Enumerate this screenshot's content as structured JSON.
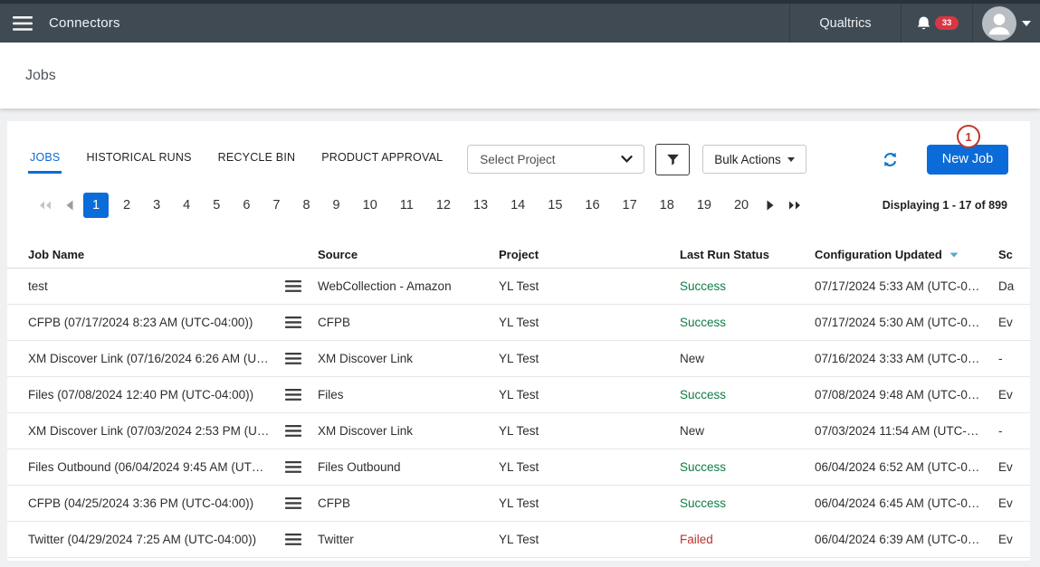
{
  "header": {
    "app_title": "Connectors",
    "brand": "Qualtrics",
    "notification_count": "33"
  },
  "page": {
    "title": "Jobs"
  },
  "tabs": [
    {
      "label": "JOBS",
      "active": true
    },
    {
      "label": "HISTORICAL RUNS",
      "active": false
    },
    {
      "label": "RECYCLE BIN",
      "active": false
    },
    {
      "label": "PRODUCT APPROVAL",
      "active": false
    }
  ],
  "toolbar": {
    "project_select_value": "Select Project",
    "bulk_actions_label": "Bulk Actions",
    "new_job_label": "New Job"
  },
  "annotation": {
    "label": "1"
  },
  "pagination": {
    "pages": [
      "1",
      "2",
      "3",
      "4",
      "5",
      "6",
      "7",
      "8",
      "9",
      "10",
      "11",
      "12",
      "13",
      "14",
      "15",
      "16",
      "17",
      "18",
      "19",
      "20"
    ],
    "current": "1",
    "summary": "Displaying 1 - 17 of 899"
  },
  "table": {
    "columns": [
      "Job Name",
      "Source",
      "Project",
      "Last Run Status",
      "Configuration Updated",
      "Sc"
    ],
    "sorted_column": "Configuration Updated",
    "rows": [
      {
        "name": "test",
        "source": "WebCollection - Amazon",
        "project": "YL Test",
        "status": "Success",
        "status_type": "success",
        "config_updated": "07/17/2024 5:33 AM (UTC-0…",
        "schedule": "Da"
      },
      {
        "name": "CFPB (07/17/2024 8:23 AM (UTC-04:00))",
        "source": "CFPB",
        "project": "YL Test",
        "status": "Success",
        "status_type": "success",
        "config_updated": "07/17/2024 5:30 AM (UTC-0…",
        "schedule": "Ev"
      },
      {
        "name": "XM Discover Link (07/16/2024 6:26 AM (U…",
        "source": "XM Discover Link",
        "project": "YL Test",
        "status": "New",
        "status_type": "new",
        "config_updated": "07/16/2024 3:33 AM (UTC-0…",
        "schedule": "-"
      },
      {
        "name": "Files (07/08/2024 12:40 PM (UTC-04:00))",
        "source": "Files",
        "project": "YL Test",
        "status": "Success",
        "status_type": "success",
        "config_updated": "07/08/2024 9:48 AM (UTC-0…",
        "schedule": "Ev"
      },
      {
        "name": "XM Discover Link (07/03/2024 2:53 PM (U…",
        "source": "XM Discover Link",
        "project": "YL Test",
        "status": "New",
        "status_type": "new",
        "config_updated": "07/03/2024 11:54 AM (UTC-…",
        "schedule": "-"
      },
      {
        "name": "Files Outbound (06/04/2024 9:45 AM (UT…",
        "source": "Files Outbound",
        "project": "YL Test",
        "status": "Success",
        "status_type": "success",
        "config_updated": "06/04/2024 6:52 AM (UTC-0…",
        "schedule": "Ev"
      },
      {
        "name": "CFPB (04/25/2024 3:36 PM (UTC-04:00))",
        "source": "CFPB",
        "project": "YL Test",
        "status": "Success",
        "status_type": "success",
        "config_updated": "06/04/2024 6:45 AM (UTC-0…",
        "schedule": "Ev"
      },
      {
        "name": "Twitter (04/29/2024 7:25 AM (UTC-04:00))",
        "source": "Twitter",
        "project": "YL Test",
        "status": "Failed",
        "status_type": "failed",
        "config_updated": "06/04/2024 6:39 AM (UTC-0…",
        "schedule": "Ev"
      }
    ]
  },
  "colors": {
    "accent_blue": "#0b6cd9",
    "success_green": "#0e7d45",
    "failed_red": "#b8352f",
    "new_status": "#2f2f2f",
    "annotation_red": "#c0392b",
    "badge_red": "#d93644",
    "header_bg": "#3f4a53",
    "sort_caret_blue": "#58a6d2",
    "refresh_blue": "#1076c9"
  }
}
